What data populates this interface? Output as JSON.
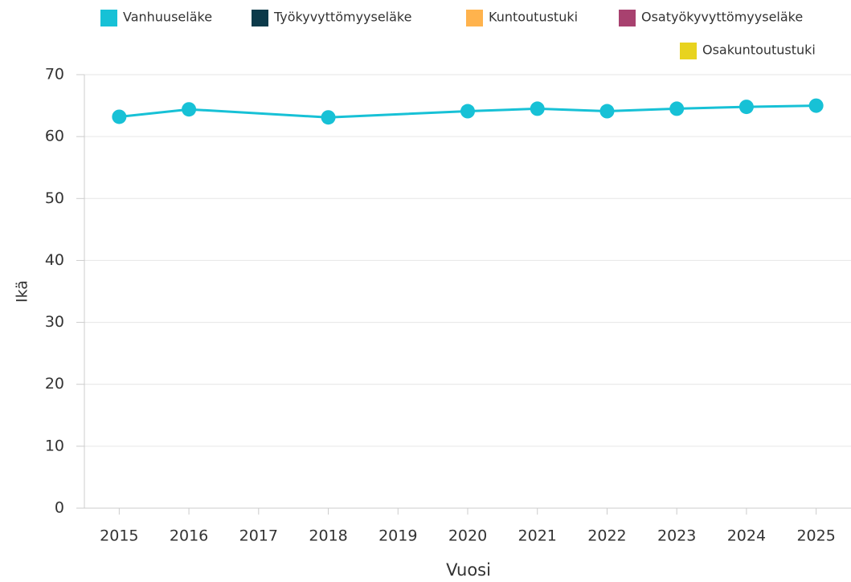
{
  "chart_data": {
    "type": "line",
    "x": [
      2015,
      2016,
      2018,
      2020,
      2021,
      2022,
      2023,
      2024,
      2025
    ],
    "series": [
      {
        "name": "Vanhuuseläke",
        "color": "#17c1d6",
        "values": [
          63.2,
          64.4,
          63.1,
          64.1,
          64.5,
          64.1,
          64.5,
          64.8,
          65.0
        ]
      },
      {
        "name": "Työkyvyttömyyseläke",
        "color": "#0c3a4a",
        "values": [
          null,
          null,
          null,
          null,
          null,
          null,
          null,
          null,
          null
        ]
      },
      {
        "name": "Kuntoutustuki",
        "color": "#ffb34d",
        "values": [
          null,
          null,
          null,
          null,
          null,
          null,
          null,
          null,
          null
        ]
      },
      {
        "name": "Osatyökyvyttömyyseläke",
        "color": "#a8416f",
        "values": [
          null,
          null,
          null,
          null,
          null,
          null,
          null,
          null,
          null
        ]
      },
      {
        "name": "Osakuntoutustuki",
        "color": "#e8d31e",
        "values": [
          null,
          null,
          null,
          null,
          null,
          null,
          null,
          null,
          null
        ]
      }
    ],
    "xlabel": "Vuosi",
    "ylabel": "Ikä",
    "xlim": [
      2014.5,
      2025.5
    ],
    "xticks": [
      2015,
      2016,
      2017,
      2018,
      2019,
      2020,
      2021,
      2022,
      2023,
      2024,
      2025
    ],
    "ylim": [
      0,
      70
    ],
    "yticks": [
      0,
      10,
      20,
      30,
      40,
      50,
      60,
      70
    ],
    "grid": true,
    "legend": "top-right"
  }
}
